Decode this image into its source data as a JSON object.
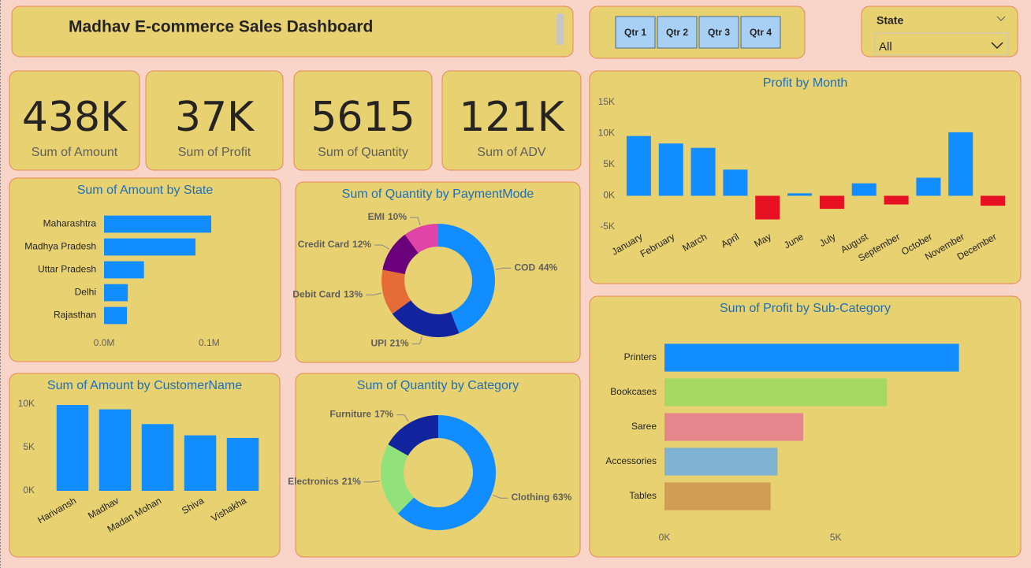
{
  "header": {
    "title": "Madhav E-commerce Sales Dashboard"
  },
  "slicers": {
    "quarters": [
      "Qtr 1",
      "Qtr 2",
      "Qtr 3",
      "Qtr 4"
    ],
    "state": {
      "label": "State",
      "value": "All"
    }
  },
  "cards": [
    {
      "value": "438K",
      "label": "Sum of Amount"
    },
    {
      "value": "37K",
      "label": "Sum of Profit"
    },
    {
      "value": "5615",
      "label": "Sum of Quantity"
    },
    {
      "value": "121K",
      "label": "Sum of ADV"
    }
  ],
  "chart_data": [
    {
      "type": "hbar",
      "title": "Sum of Amount by State",
      "categories": [
        "Maharashtra",
        "Madhya Pradesh",
        "Uttar Pradesh",
        "Delhi",
        "Rajasthan"
      ],
      "values": [
        102000,
        87000,
        38000,
        22600,
        21800
      ],
      "color": "#118dff",
      "xlim": [
        0,
        120000
      ],
      "xticks": [
        {
          "value": 0,
          "label": "0.0M"
        },
        {
          "value": 100000,
          "label": "0.1M"
        }
      ]
    },
    {
      "type": "donut",
      "title": "Sum of Quantity by PaymentMode",
      "categories": [
        "COD",
        "UPI",
        "Debit Card",
        "Credit Card",
        "EMI"
      ],
      "values": [
        44,
        21,
        13,
        12,
        10
      ],
      "value_labels": [
        "44%",
        "21%",
        "13%",
        "12%",
        "10%"
      ],
      "colors": [
        "#118dff",
        "#12239e",
        "#e66c37",
        "#6b007b",
        "#e044a7"
      ]
    },
    {
      "type": "bar",
      "title": "Profit by Month",
      "categories": [
        "January",
        "February",
        "March",
        "April",
        "May",
        "June",
        "July",
        "August",
        "September",
        "October",
        "November",
        "December"
      ],
      "values": [
        9600,
        8400,
        7700,
        4200,
        -3800,
        400,
        -2100,
        2000,
        -1400,
        2900,
        10200,
        -1600
      ],
      "color": "#118dff",
      "negative_color": "#e81123",
      "ylim": [
        -5000,
        15000
      ],
      "yticks": [
        {
          "value": -5000,
          "label": "-5K"
        },
        {
          "value": 0,
          "label": "0K"
        },
        {
          "value": 5000,
          "label": "5K"
        },
        {
          "value": 10000,
          "label": "10K"
        },
        {
          "value": 15000,
          "label": "15K"
        }
      ]
    },
    {
      "type": "bar",
      "title": "Sum of Amount by CustomerName",
      "categories": [
        "Harivansh",
        "Madhav",
        "Madan Mohan",
        "Shiva",
        "Vishakha"
      ],
      "values": [
        9900,
        9400,
        7700,
        6400,
        6100
      ],
      "color": "#118dff",
      "ylim": [
        0,
        11000
      ],
      "yticks": [
        {
          "value": 0,
          "label": "0K"
        },
        {
          "value": 5000,
          "label": "5K"
        },
        {
          "value": 10000,
          "label": "10K"
        }
      ]
    },
    {
      "type": "donut",
      "title": "Sum of Quantity by Category",
      "categories": [
        "Clothing",
        "Electronics",
        "Furniture"
      ],
      "values": [
        63,
        21,
        17
      ],
      "value_labels": [
        "63%",
        "21%",
        "17%"
      ],
      "colors": [
        "#118dff",
        "#91e27b",
        "#12239e"
      ]
    },
    {
      "type": "hbar",
      "title": "Sum of Profit by Sub-Category",
      "categories": [
        "Printers",
        "Bookcases",
        "Saree",
        "Accessories",
        "Tables"
      ],
      "values": [
        8600,
        6500,
        4050,
        3300,
        3100
      ],
      "colors": [
        "#118dff",
        "#a6d864",
        "#e5868c",
        "#7fb3d1",
        "#d19c53"
      ],
      "xlim": [
        0,
        9000
      ],
      "xticks": [
        {
          "value": 0,
          "label": "0K"
        },
        {
          "value": 5000,
          "label": "5K"
        }
      ]
    }
  ]
}
